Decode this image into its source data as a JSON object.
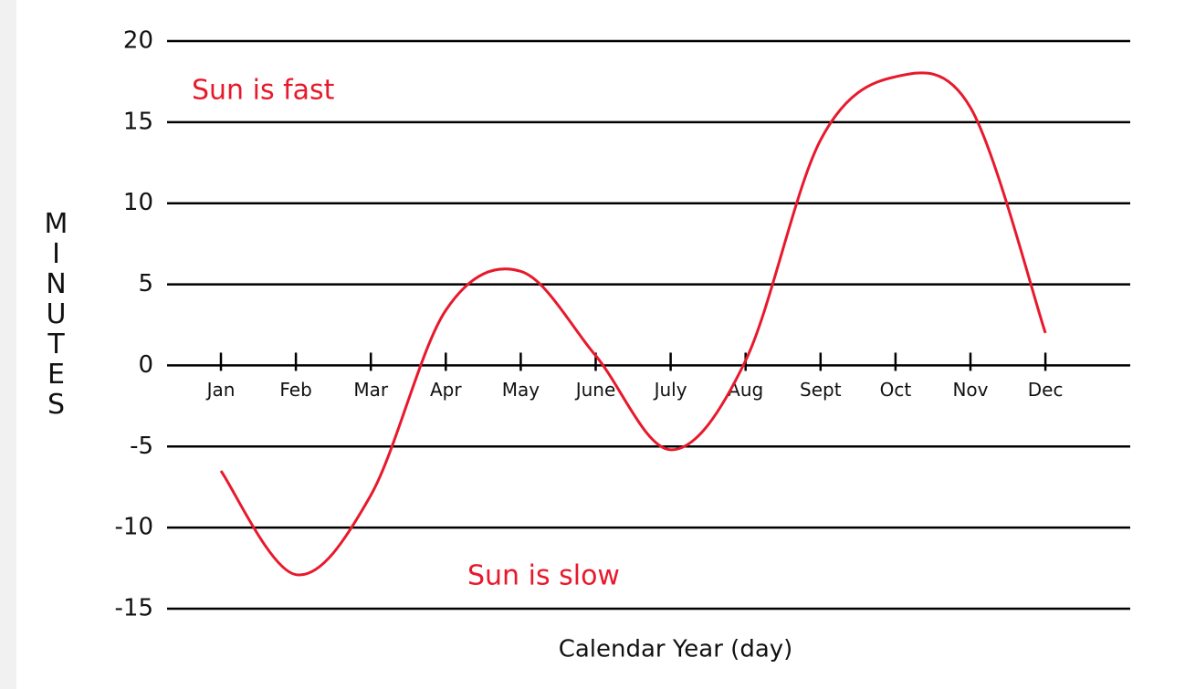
{
  "chart_data": {
    "type": "line",
    "x_label": "Calendar Year (day)",
    "y_label": "MINUTES",
    "annotations": [
      "Sun is fast",
      "Sun is slow"
    ],
    "categories": [
      "Jan",
      "Feb",
      "Mar",
      "Apr",
      "May",
      "June",
      "July",
      "Aug",
      "Sept",
      "Oct",
      "Nov",
      "Dec"
    ],
    "values": [
      -6.5,
      -12.9,
      -8,
      3.4,
      5.8,
      0.6,
      -5.2,
      0.3,
      13.9,
      17.8,
      15.9,
      2.0
    ],
    "color": "#e8192c",
    "ylim": [
      -15,
      20
    ],
    "yticks": [
      -15,
      -10,
      -5,
      0,
      5,
      10,
      15,
      20
    ],
    "grid": true
  }
}
